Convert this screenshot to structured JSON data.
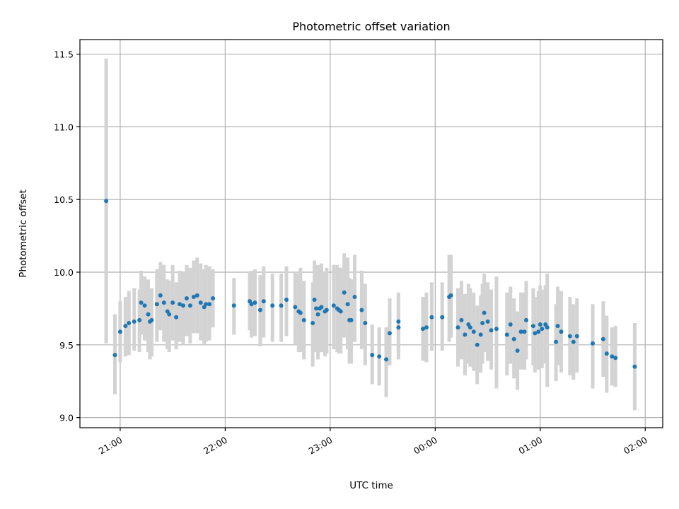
{
  "chart_data": {
    "type": "scatter",
    "title": "Photometric offset variation",
    "xlabel": "UTC time",
    "ylabel": "Photometric offset",
    "grid": true,
    "x_unit": "UTC time (hh:mm)",
    "xlim": [
      "20:37",
      "22:00+4:01"
    ],
    "x_ticks": [
      "21:00",
      "22:00",
      "23:00",
      "00:00",
      "01:00",
      "02:00"
    ],
    "ylim": [
      8.93,
      11.6
    ],
    "y_ticks": [
      "9.0",
      "9.5",
      "10.0",
      "10.5",
      "11.0",
      "11.5"
    ],
    "marker_color": "#1f77b4",
    "errorbar_color": "#d3d3d3",
    "x": [
      "20:52",
      "20:57",
      "21:00",
      "21:03",
      "21:05",
      "21:08",
      "21:11",
      "21:12",
      "21:14",
      "21:16",
      "21:17",
      "21:18",
      "21:21",
      "21:23",
      "21:25",
      "21:27",
      "21:28",
      "21:30",
      "21:32",
      "21:34",
      "21:36",
      "21:38",
      "21:40",
      "21:42",
      "21:44",
      "21:46",
      "21:48",
      "21:49",
      "21:51",
      "21:53",
      "22:05",
      "22:14",
      "22:15",
      "22:17",
      "22:20",
      "22:22",
      "22:27",
      "22:32",
      "22:35",
      "22:40",
      "22:42",
      "22:43",
      "22:45",
      "22:50",
      "22:51",
      "22:52",
      "22:53",
      "22:54",
      "22:55",
      "22:57",
      "22:58",
      "23:02",
      "23:04",
      "23:05",
      "23:06",
      "23:08",
      "23:10",
      "23:11",
      "23:12",
      "23:14",
      "23:18",
      "23:20",
      "23:24",
      "23:28",
      "23:32",
      "23:34",
      "23:39",
      "23:39",
      "23:53",
      "23:55",
      "23:58",
      "00:04",
      "00:08",
      "00:09",
      "00:13",
      "00:15",
      "00:17",
      "00:19",
      "00:20",
      "00:22",
      "00:24",
      "00:26",
      "00:27",
      "00:28",
      "00:30",
      "00:32",
      "00:35",
      "00:41",
      "00:43",
      "00:45",
      "00:47",
      "00:49",
      "00:51",
      "00:52",
      "00:56",
      "00:57",
      "00:59",
      "01:00",
      "01:01",
      "01:03",
      "01:04",
      "01:09",
      "01:10",
      "01:12",
      "01:17",
      "01:19",
      "01:21",
      "01:30",
      "01:36",
      "01:38",
      "01:41",
      "01:43",
      "01:54"
    ],
    "y": [
      10.49,
      9.43,
      9.59,
      9.63,
      9.65,
      9.66,
      9.67,
      9.79,
      9.77,
      9.71,
      9.66,
      9.67,
      9.78,
      9.84,
      9.79,
      9.73,
      9.71,
      9.79,
      9.69,
      9.78,
      9.77,
      9.82,
      9.77,
      9.83,
      9.84,
      9.79,
      9.76,
      9.78,
      9.78,
      9.82,
      9.77,
      9.8,
      9.78,
      9.79,
      9.74,
      9.8,
      9.77,
      9.77,
      9.81,
      9.76,
      9.73,
      9.72,
      9.67,
      9.65,
      9.81,
      9.75,
      9.71,
      9.75,
      9.76,
      9.73,
      9.74,
      9.77,
      9.75,
      9.74,
      9.73,
      9.86,
      9.78,
      9.67,
      9.67,
      9.83,
      9.74,
      9.65,
      9.43,
      9.42,
      9.4,
      9.58,
      9.66,
      9.62,
      9.61,
      9.62,
      9.69,
      9.69,
      9.83,
      9.84,
      9.62,
      9.67,
      9.57,
      9.64,
      9.62,
      9.59,
      9.5,
      9.57,
      9.65,
      9.72,
      9.66,
      9.6,
      9.61,
      9.57,
      9.64,
      9.54,
      9.46,
      9.59,
      9.59,
      9.67,
      9.63,
      9.58,
      9.59,
      9.64,
      9.61,
      9.64,
      9.62,
      9.52,
      9.63,
      9.59,
      9.56,
      9.52,
      9.56,
      9.51,
      9.54,
      9.44,
      9.42,
      9.41,
      9.35
    ],
    "yerr_low": [
      9.51,
      9.16,
      9.38,
      9.42,
      9.43,
      9.46,
      9.45,
      9.57,
      9.53,
      9.45,
      9.4,
      9.42,
      9.52,
      9.6,
      9.52,
      9.47,
      9.45,
      9.53,
      9.47,
      9.52,
      9.5,
      9.56,
      9.51,
      9.58,
      9.58,
      9.53,
      9.5,
      9.52,
      9.53,
      9.62,
      9.57,
      9.6,
      9.55,
      9.56,
      9.49,
      9.55,
      9.52,
      9.52,
      9.56,
      9.5,
      9.45,
      9.45,
      9.4,
      9.35,
      9.5,
      9.45,
      9.4,
      9.45,
      9.45,
      9.42,
      9.44,
      9.47,
      9.45,
      9.44,
      9.44,
      9.55,
      9.47,
      9.37,
      9.37,
      9.52,
      9.47,
      9.36,
      9.23,
      9.22,
      9.14,
      9.36,
      9.44,
      9.4,
      9.39,
      9.38,
      9.46,
      9.46,
      9.52,
      9.55,
      9.35,
      9.4,
      9.29,
      9.37,
      9.35,
      9.32,
      9.23,
      9.31,
      9.37,
      9.45,
      9.39,
      9.33,
      9.2,
      9.29,
      9.37,
      9.27,
      9.19,
      9.33,
      9.33,
      9.4,
      9.36,
      9.31,
      9.33,
      9.38,
      9.34,
      9.37,
      9.21,
      9.25,
      9.36,
      9.31,
      9.29,
      9.26,
      9.31,
      9.2,
      9.28,
      9.17,
      9.22,
      9.21,
      9.05
    ],
    "yerr_high": [
      11.47,
      9.71,
      9.8,
      9.83,
      9.87,
      9.89,
      9.88,
      10.01,
      9.97,
      9.95,
      9.87,
      9.89,
      10.02,
      10.07,
      10.05,
      9.95,
      9.94,
      10.05,
      9.93,
      10.01,
      10.0,
      10.05,
      10.03,
      10.08,
      10.1,
      10.06,
      10.02,
      10.05,
      10.04,
      10.02,
      9.96,
      10.0,
      10.01,
      10.02,
      9.98,
      10.04,
      9.99,
      9.99,
      10.04,
      10.0,
      9.99,
      10.03,
      9.94,
      9.93,
      10.08,
      10.05,
      9.98,
      10.05,
      10.06,
      10.0,
      10.03,
      10.05,
      10.05,
      10.03,
      10.03,
      10.13,
      10.1,
      9.96,
      9.95,
      10.12,
      10.01,
      9.92,
      9.64,
      9.62,
      9.62,
      9.82,
      9.86,
      9.84,
      9.83,
      9.86,
      9.93,
      9.93,
      10.12,
      10.12,
      9.89,
      9.94,
      9.85,
      9.92,
      9.89,
      9.86,
      9.77,
      9.84,
      9.92,
      9.99,
      9.93,
      9.88,
      9.97,
      9.86,
      9.9,
      9.82,
      9.73,
      9.86,
      9.86,
      9.94,
      9.89,
      9.83,
      9.87,
      9.91,
      9.88,
      9.91,
      9.99,
      9.78,
      9.9,
      9.87,
      9.83,
      9.78,
      9.82,
      9.78,
      9.8,
      9.7,
      9.62,
      9.63,
      9.65
    ]
  }
}
